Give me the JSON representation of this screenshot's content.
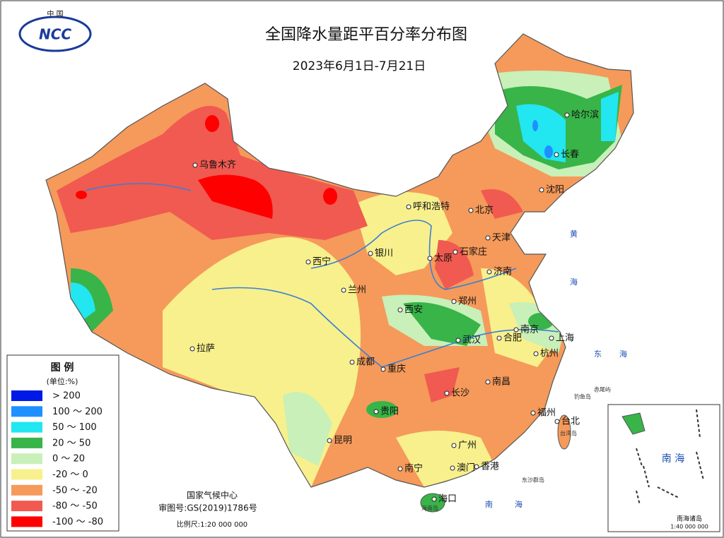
{
  "header": {
    "title": "全国降水量距平百分率分布图",
    "subtitle": "2023年6月1日-7月21日",
    "logo_top": "中 国",
    "logo_text": "NCC"
  },
  "legend": {
    "title": "图 例",
    "unit": "(单位:%)",
    "items": [
      {
        "label": "> 200",
        "color": "#0019e6"
      },
      {
        "label": "100 ～ 200",
        "color": "#1e90ff"
      },
      {
        "label": "50 ～ 100",
        "color": "#22e6f0"
      },
      {
        "label": "20 ～ 50",
        "color": "#38b448"
      },
      {
        "label": "0 ～ 20",
        "color": "#c8f0b8"
      },
      {
        "label": "-20 ～ 0",
        "color": "#f8f08c"
      },
      {
        "label": "-50 ～ -20",
        "color": "#f59a5a"
      },
      {
        "label": "-80 ～ -50",
        "color": "#f05a50"
      },
      {
        "label": "-100 ～ -80",
        "color": "#ff0000"
      }
    ]
  },
  "cities": [
    "乌鲁木齐",
    "哈尔滨",
    "长春",
    "沈阳",
    "呼和浩特",
    "北京",
    "天津",
    "石家庄",
    "太原",
    "银川",
    "西宁",
    "兰州",
    "济南",
    "郑州",
    "西安",
    "南京",
    "合肥",
    "上海",
    "武汉",
    "杭州",
    "成都",
    "重庆",
    "拉萨",
    "南昌",
    "长沙",
    "福州",
    "台北",
    "贵阳",
    "昆明",
    "广州",
    "南宁",
    "澳门",
    "香港",
    "海口"
  ],
  "seas": [
    "黄",
    "海",
    "东",
    "海",
    "南",
    "海"
  ],
  "islands": [
    "钓鱼岛",
    "赤尾屿",
    "台湾岛",
    "东沙群岛",
    "海南岛"
  ],
  "footer": {
    "center": "国家气候中心",
    "approval": "审图号:GS(2019)1786号",
    "scale": "比例尺:1:20 000 000"
  },
  "inset": {
    "sea": "南 海",
    "label": "南海诸岛",
    "scale": "1:40 000 000"
  }
}
